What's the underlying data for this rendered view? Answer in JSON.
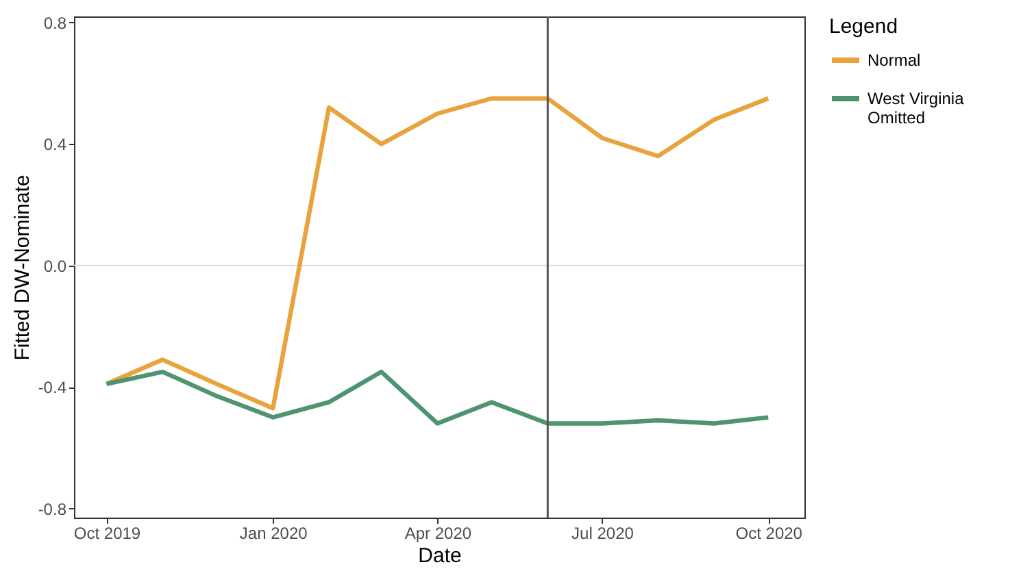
{
  "chart_data": {
    "type": "line",
    "xlabel": "Date",
    "ylabel": "Fitted DW-Nominate",
    "legend_title": "Legend",
    "legend": "right",
    "x": [
      "2019-10-01",
      "2019-11-01",
      "2019-12-01",
      "2020-01-01",
      "2020-02-01",
      "2020-03-01",
      "2020-04-01",
      "2020-05-01",
      "2020-06-01",
      "2020-07-01",
      "2020-08-01",
      "2020-09-01",
      "2020-10-01"
    ],
    "series": [
      {
        "name": "Normal",
        "color": "#e8a33d",
        "values": [
          -0.39,
          -0.31,
          -0.39,
          -0.47,
          0.52,
          0.4,
          0.5,
          0.55,
          0.55,
          0.42,
          0.36,
          0.48,
          0.55
        ]
      },
      {
        "name": "West Virginia Omitted",
        "color": "#4f9470",
        "values": [
          -0.39,
          -0.35,
          -0.43,
          -0.5,
          -0.45,
          -0.35,
          -0.52,
          -0.45,
          -0.52,
          -0.52,
          -0.51,
          -0.52,
          -0.5
        ]
      }
    ],
    "xlim": [
      "2019-09-13",
      "2020-10-21"
    ],
    "xticks": [
      {
        "value": "2019-10-01",
        "label": "Oct 2019"
      },
      {
        "value": "2020-01-01",
        "label": "Jan 2020"
      },
      {
        "value": "2020-04-01",
        "label": "Apr 2020"
      },
      {
        "value": "2020-07-01",
        "label": "Jul 2020"
      },
      {
        "value": "2020-10-01",
        "label": "Oct 2020"
      }
    ],
    "ylim": [
      -0.83,
      0.82
    ],
    "yticks": [
      {
        "value": -0.8,
        "label": "-0.8"
      },
      {
        "value": -0.4,
        "label": "-0.4"
      },
      {
        "value": 0,
        "label": "0.0"
      },
      {
        "value": 0.4,
        "label": "0.4"
      },
      {
        "value": 0.8,
        "label": "0.8"
      }
    ],
    "ref_lines": [
      {
        "axis": "y",
        "value": 0,
        "color": "#dddddd"
      },
      {
        "axis": "x",
        "value": "2020-06-01",
        "color": "#555555"
      }
    ],
    "grid": false,
    "marker": "none",
    "line_style": "solid"
  }
}
